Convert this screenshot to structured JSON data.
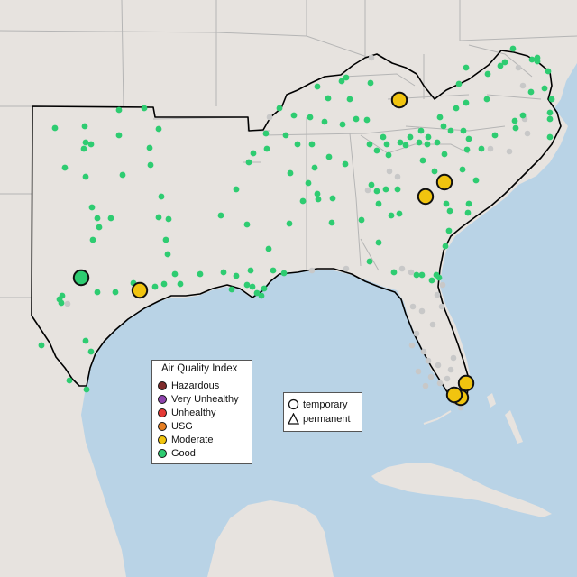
{
  "legend": {
    "title": "Air Quality Index",
    "categories": [
      {
        "label": "Hazardous",
        "color": "#7e2b2b"
      },
      {
        "label": "Very Unhealthy",
        "color": "#8e44ad"
      },
      {
        "label": "Unhealthy",
        "color": "#e53935"
      },
      {
        "label": "USG",
        "color": "#e67e22"
      },
      {
        "label": "Moderate",
        "color": "#f1c40f"
      },
      {
        "label": "Good",
        "color": "#2ecc71"
      }
    ]
  },
  "monitor_types": [
    {
      "label": "temporary",
      "shape": "circle"
    },
    {
      "label": "permanent",
      "shape": "triangle"
    }
  ],
  "colors": {
    "water": "#b9d3e6",
    "land": "#e7e3df",
    "no_data": "#c8c8c8",
    "region_outline": "#000000",
    "state_lines": "#b5b5b5"
  },
  "monitors_highlighted": [
    {
      "category": "Good",
      "location": "Central Texas"
    },
    {
      "category": "Moderate",
      "location": "Houston, TX"
    },
    {
      "category": "Moderate",
      "location": "Eastern Tennessee"
    },
    {
      "category": "Moderate",
      "location": "Augusta, GA area"
    },
    {
      "category": "Moderate",
      "location": "Columbia, SC area"
    },
    {
      "category": "Moderate",
      "location": "Miami, FL"
    },
    {
      "category": "Moderate",
      "location": "Fort Lauderdale, FL"
    },
    {
      "category": "Moderate",
      "location": "West Palm Beach area, FL"
    }
  ]
}
